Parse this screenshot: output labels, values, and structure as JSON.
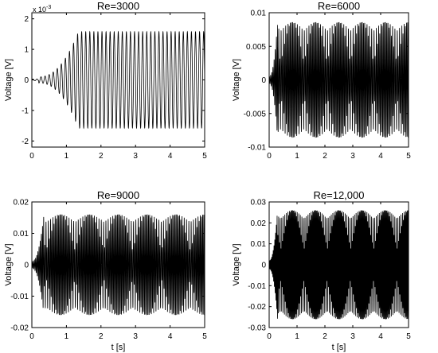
{
  "chart_data": [
    {
      "type": "line",
      "title": "Re=3000",
      "xlabel": "",
      "ylabel": "Voltage [V]",
      "y_multiplier": "x 10",
      "y_multiplier_exp": "-3",
      "xlim": [
        0,
        5
      ],
      "ylim": [
        -2.2,
        2.2
      ],
      "xticks": [
        0,
        1,
        2,
        3,
        4,
        5
      ],
      "yticks": [
        2,
        1,
        0,
        -1,
        -2
      ],
      "ytick_labels": [
        "2",
        "1",
        "0",
        "-1",
        "-2"
      ],
      "grid": false,
      "signal": {
        "kind": "growing_sinusoid",
        "initial_amplitude": 0.1,
        "saturation_amplitude": 1.58,
        "saturation_time": 1.35,
        "start_oscillation_time": 0.2,
        "cycles_per_second": 8.5,
        "envelope_beats": false,
        "visible_cycles_shown": true
      }
    },
    {
      "type": "line",
      "title": "Re=6000",
      "xlabel": "",
      "ylabel": "Voltage [V]",
      "xlim": [
        0,
        5
      ],
      "ylim": [
        -0.01,
        0.01
      ],
      "xticks": [
        0,
        1,
        2,
        3,
        4,
        5
      ],
      "yticks": [
        0.01,
        0.005,
        0,
        -0.005,
        -0.01
      ],
      "ytick_labels": [
        "0.01",
        "0.005",
        "0",
        "-0.005",
        "-0.01"
      ],
      "grid": false,
      "signal": {
        "kind": "growing_sinusoid",
        "initial_amplitude": 0.0005,
        "saturation_amplitude": 0.0086,
        "saturation_time": 0.3,
        "start_oscillation_time": 0.0,
        "cycles_per_second": 24,
        "envelope_beats": true,
        "visible_cycles_shown": false
      }
    },
    {
      "type": "line",
      "title": "Re=9000",
      "xlabel": "t [s]",
      "ylabel": "Voltage [V]",
      "xlim": [
        0,
        5
      ],
      "ylim": [
        -0.02,
        0.02
      ],
      "xticks": [
        0,
        1,
        2,
        3,
        4,
        5
      ],
      "yticks": [
        0.02,
        0.01,
        0,
        -0.01,
        -0.02
      ],
      "ytick_labels": [
        "0.02",
        "0.01",
        "0",
        "-0.01",
        "-0.02"
      ],
      "grid": false,
      "signal": {
        "kind": "growing_sinusoid",
        "initial_amplitude": 0.001,
        "saturation_amplitude": 0.016,
        "saturation_time": 0.35,
        "start_oscillation_time": 0.0,
        "cycles_per_second": 30,
        "envelope_beats": true,
        "visible_cycles_shown": false
      }
    },
    {
      "type": "line",
      "title": "Re=12,000",
      "xlabel": "t [s]",
      "ylabel": "Voltage [V]",
      "xlim": [
        0,
        5
      ],
      "ylim": [
        -0.03,
        0.03
      ],
      "xticks": [
        0,
        1,
        2,
        3,
        4,
        5
      ],
      "yticks": [
        0.03,
        0.02,
        0.01,
        0,
        -0.01,
        -0.02,
        -0.03
      ],
      "ytick_labels": [
        "0.03",
        "0.02",
        "0.01",
        "0",
        "-0.01",
        "-0.02",
        "-0.03"
      ],
      "grid": false,
      "signal": {
        "kind": "growing_sinusoid",
        "initial_amplitude": 0.002,
        "saturation_amplitude": 0.026,
        "saturation_time": 0.3,
        "start_oscillation_time": 0.0,
        "cycles_per_second": 36,
        "envelope_beats": true,
        "visible_cycles_shown": false
      }
    }
  ]
}
